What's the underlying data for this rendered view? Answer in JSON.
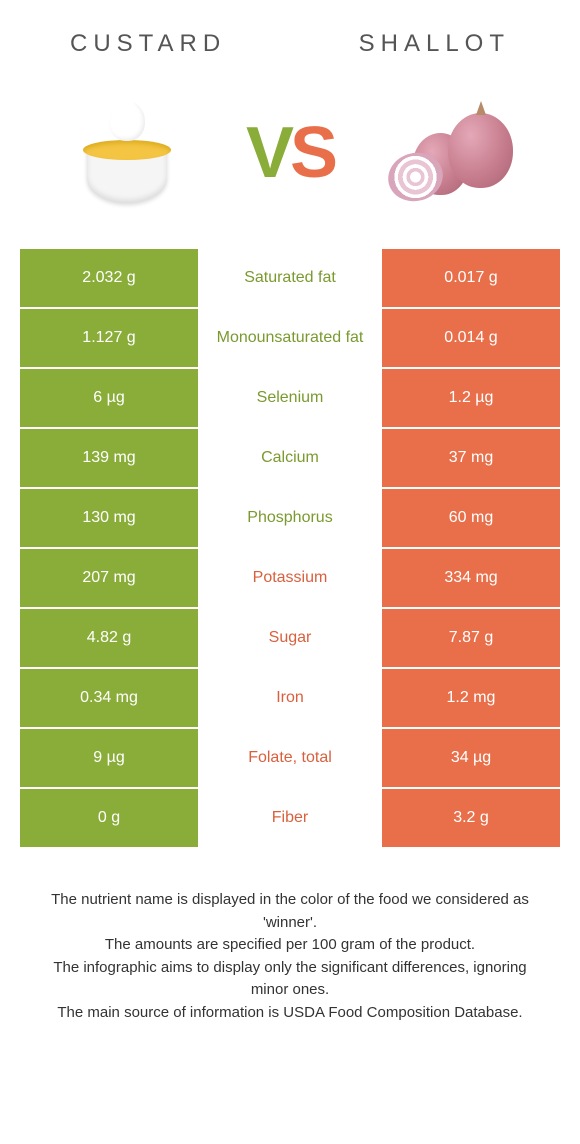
{
  "header": {
    "left_title": "custard",
    "right_title": "shallot"
  },
  "vs": {
    "v": "V",
    "s": "S"
  },
  "colors": {
    "green": "#8aad3a",
    "orange": "#e86f4a",
    "text_green": "#7a9a2f",
    "text_orange": "#d9603e"
  },
  "table": {
    "rows": [
      {
        "left": "2.032 g",
        "label": "Saturated fat",
        "right": "0.017 g",
        "winner": "left"
      },
      {
        "left": "1.127 g",
        "label": "Monounsaturated fat",
        "right": "0.014 g",
        "winner": "left"
      },
      {
        "left": "6 µg",
        "label": "Selenium",
        "right": "1.2 µg",
        "winner": "left"
      },
      {
        "left": "139 mg",
        "label": "Calcium",
        "right": "37 mg",
        "winner": "left"
      },
      {
        "left": "130 mg",
        "label": "Phosphorus",
        "right": "60 mg",
        "winner": "left"
      },
      {
        "left": "207 mg",
        "label": "Potassium",
        "right": "334 mg",
        "winner": "right"
      },
      {
        "left": "4.82 g",
        "label": "Sugar",
        "right": "7.87 g",
        "winner": "right"
      },
      {
        "left": "0.34 mg",
        "label": "Iron",
        "right": "1.2 mg",
        "winner": "right"
      },
      {
        "left": "9 µg",
        "label": "Folate, total",
        "right": "34 µg",
        "winner": "right"
      },
      {
        "left": "0 g",
        "label": "Fiber",
        "right": "3.2 g",
        "winner": "right"
      }
    ]
  },
  "footer": {
    "line1": "The nutrient name is displayed in the color of the food we considered as 'winner'.",
    "line2": "The amounts are specified per 100 gram of the product.",
    "line3": "The infographic aims to display only the significant differences, ignoring minor ones.",
    "line4": "The main source of information is USDA Food Composition Database."
  }
}
